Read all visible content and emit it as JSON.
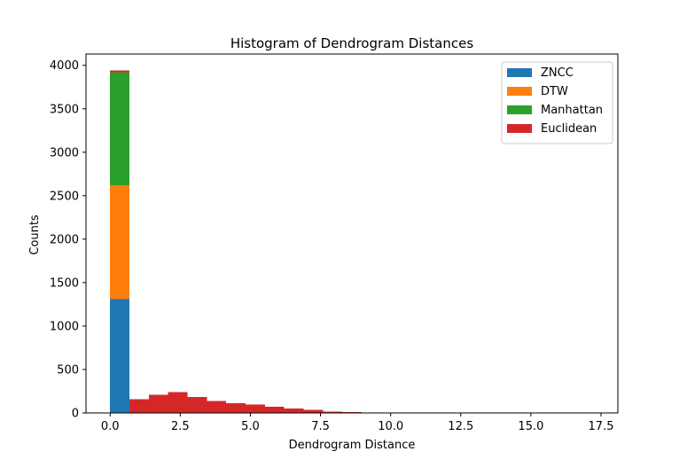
{
  "chart_data": {
    "type": "bar",
    "stacked": true,
    "title": "Histogram of Dendrogram Distances",
    "xlabel": "Dendrogram Distance",
    "ylabel": "Counts",
    "xlim": [
      -0.86,
      18.1
    ],
    "ylim": [
      0,
      4130
    ],
    "xticks": [
      0.0,
      2.5,
      5.0,
      7.5,
      10.0,
      12.5,
      15.0,
      17.5
    ],
    "xtick_labels": [
      "0.0",
      "2.5",
      "5.0",
      "7.5",
      "10.0",
      "12.5",
      "15.0",
      "17.5"
    ],
    "yticks": [
      0,
      500,
      1000,
      1500,
      2000,
      2500,
      3000,
      3500,
      4000
    ],
    "ytick_labels": [
      "0",
      "500",
      "1000",
      "1500",
      "2000",
      "2500",
      "3000",
      "3500",
      "4000"
    ],
    "grid": false,
    "legend_position": "top-right",
    "bin_edges": [
      0,
      0.69,
      1.38,
      2.07,
      2.76,
      3.45,
      4.14,
      4.83,
      5.52,
      6.21,
      6.9,
      7.59,
      8.28,
      8.97,
      9.66,
      10.35,
      11.04,
      11.73,
      12.42,
      13.11,
      13.8,
      14.49,
      15.18,
      15.87,
      16.56,
      17.25
    ],
    "series": [
      {
        "name": "ZNCC",
        "color": "#1f77b4",
        "values": [
          1310,
          0,
          0,
          0,
          0,
          0,
          0,
          0,
          0,
          0,
          0,
          0,
          0,
          0,
          0,
          0,
          0,
          0,
          0,
          0,
          0,
          0,
          0,
          0,
          0
        ]
      },
      {
        "name": "DTW",
        "color": "#ff7f0e",
        "values": [
          1310,
          0,
          0,
          0,
          0,
          0,
          0,
          0,
          0,
          0,
          0,
          0,
          0,
          0,
          0,
          0,
          0,
          0,
          0,
          0,
          0,
          0,
          0,
          0,
          0
        ]
      },
      {
        "name": "Manhattan",
        "color": "#2ca02c",
        "values": [
          1300,
          0,
          0,
          0,
          0,
          0,
          0,
          0,
          0,
          0,
          0,
          0,
          0,
          0,
          0,
          0,
          0,
          0,
          0,
          0,
          0,
          0,
          0,
          0,
          0
        ]
      },
      {
        "name": "Euclidean",
        "color": "#d62728",
        "values": [
          20,
          160,
          210,
          240,
          185,
          140,
          110,
          95,
          70,
          50,
          35,
          15,
          8,
          5,
          4,
          3,
          2,
          2,
          1,
          1,
          1,
          1,
          1,
          1,
          1
        ]
      }
    ]
  }
}
